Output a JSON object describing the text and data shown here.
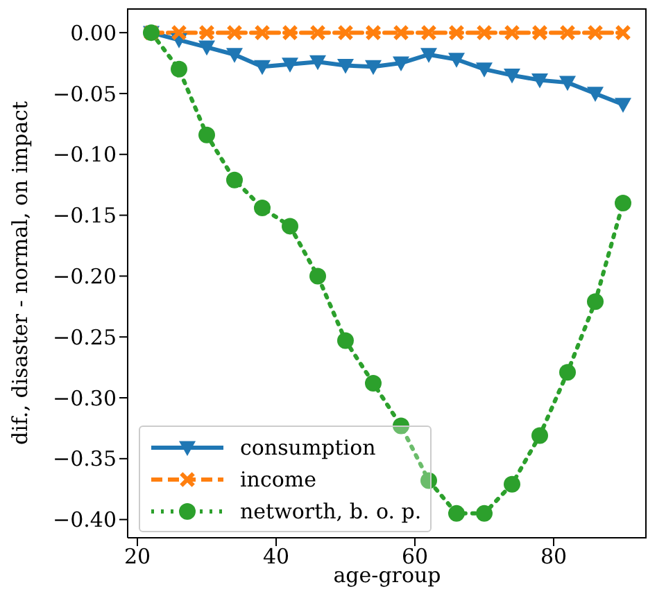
{
  "chart_data": {
    "type": "line",
    "xlabel": "age-group",
    "ylabel": "dif., disaster - normal, on impact",
    "x": [
      22,
      26,
      30,
      34,
      38,
      42,
      46,
      50,
      54,
      58,
      62,
      66,
      70,
      74,
      78,
      82,
      86,
      90
    ],
    "series": [
      {
        "name": "consumption",
        "color": "#1f77b4",
        "marker": "triangle",
        "line_style": "solid",
        "values": [
          0,
          -0.006,
          -0.012,
          -0.018,
          -0.028,
          -0.026,
          -0.024,
          -0.027,
          -0.028,
          -0.025,
          -0.018,
          -0.022,
          -0.03,
          -0.035,
          -0.039,
          -0.041,
          -0.05,
          -0.059
        ]
      },
      {
        "name": "income",
        "color": "#ff7f0e",
        "marker": "cross",
        "line_style": "dashed",
        "values": [
          0,
          0,
          0,
          0,
          0,
          0,
          0,
          0,
          0,
          0,
          0,
          0,
          0,
          0,
          0,
          0,
          0,
          0
        ]
      },
      {
        "name": "networth, b. o. p.",
        "color": "#2ca02c",
        "marker": "circle",
        "line_style": "dotted",
        "values": [
          0,
          -0.03,
          -0.084,
          -0.121,
          -0.144,
          -0.159,
          -0.2,
          -0.253,
          -0.288,
          -0.323,
          -0.368,
          -0.395,
          -0.395,
          -0.371,
          -0.331,
          -0.279,
          -0.221,
          -0.14
        ]
      }
    ],
    "xlim": [
      18.6,
      93.4
    ],
    "xticks": [
      20,
      40,
      60,
      80
    ],
    "ylim": [
      -0.415,
      0.02
    ],
    "yticks": [
      {
        "value": 0,
        "label": "0.00"
      },
      {
        "value": -0.05,
        "label": "−0.05"
      },
      {
        "value": -0.1,
        "label": "−0.10"
      },
      {
        "value": -0.15,
        "label": "−0.15"
      },
      {
        "value": -0.2,
        "label": "−0.20"
      },
      {
        "value": -0.25,
        "label": "−0.25"
      },
      {
        "value": -0.3,
        "label": "−0.30"
      },
      {
        "value": -0.35,
        "label": "−0.35"
      },
      {
        "value": -0.4,
        "label": "−0.40"
      }
    ],
    "grid": false,
    "legend": "bottom left"
  }
}
